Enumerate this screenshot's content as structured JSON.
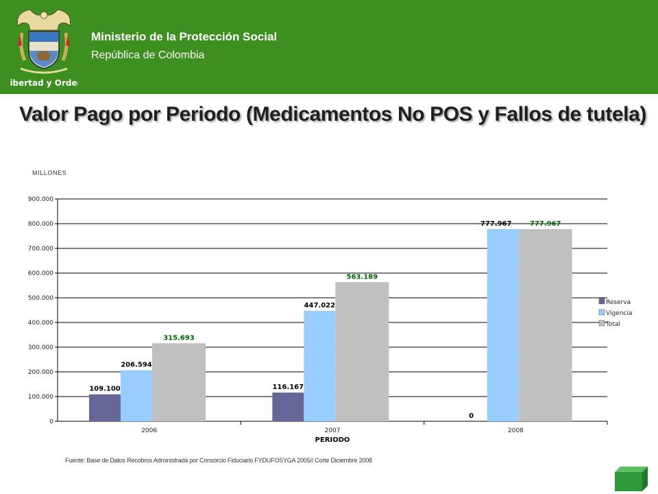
{
  "header": {
    "ministry": "Ministerio de la Protección Social",
    "country": "República de Colombia",
    "motto": "Libertad y Orden"
  },
  "slide": {
    "title": "Valor Pago por Periodo (Medicamentos No POS y Fallos de tutela)",
    "unit_label": "MILLONES",
    "source_note": "Fuente: Base de Datos Recobros Administrada por Consorcio Fiduciario FYDUFOSYGA 2005// Corte Diciembre 2008"
  },
  "colors": {
    "header_bg": "#3d8f1f",
    "reserva": "#666699",
    "vigencia": "#99ccff",
    "total": "#c0c0c0",
    "total_label": "#006600",
    "nav_button": "#2e9a3a"
  },
  "chart_data": {
    "type": "bar",
    "title": "",
    "xlabel": "PERIODO",
    "ylabel": "MILLONES",
    "ylim": [
      0,
      900000
    ],
    "yticks": [
      0,
      100000,
      200000,
      300000,
      400000,
      500000,
      600000,
      700000,
      800000,
      900000
    ],
    "ytick_labels": [
      "0",
      "100.000",
      "200.000",
      "300.000",
      "400.000",
      "500.000",
      "600.000",
      "700.000",
      "800.000",
      "900.000"
    ],
    "grid": true,
    "legend": "right",
    "categories": [
      "2006",
      "2007",
      "2008"
    ],
    "series": [
      {
        "name": "Reserva",
        "values": [
          109100,
          116167,
          0
        ],
        "labels": [
          "109.100",
          "116.167",
          "0"
        ]
      },
      {
        "name": "Vigencia",
        "values": [
          206594,
          447022,
          777967
        ],
        "labels": [
          "206.594",
          "447.022",
          "777.967"
        ]
      },
      {
        "name": "Total",
        "values": [
          315693,
          563189,
          777967
        ],
        "labels": [
          "315.693",
          "563.189",
          "777.967"
        ]
      }
    ]
  }
}
